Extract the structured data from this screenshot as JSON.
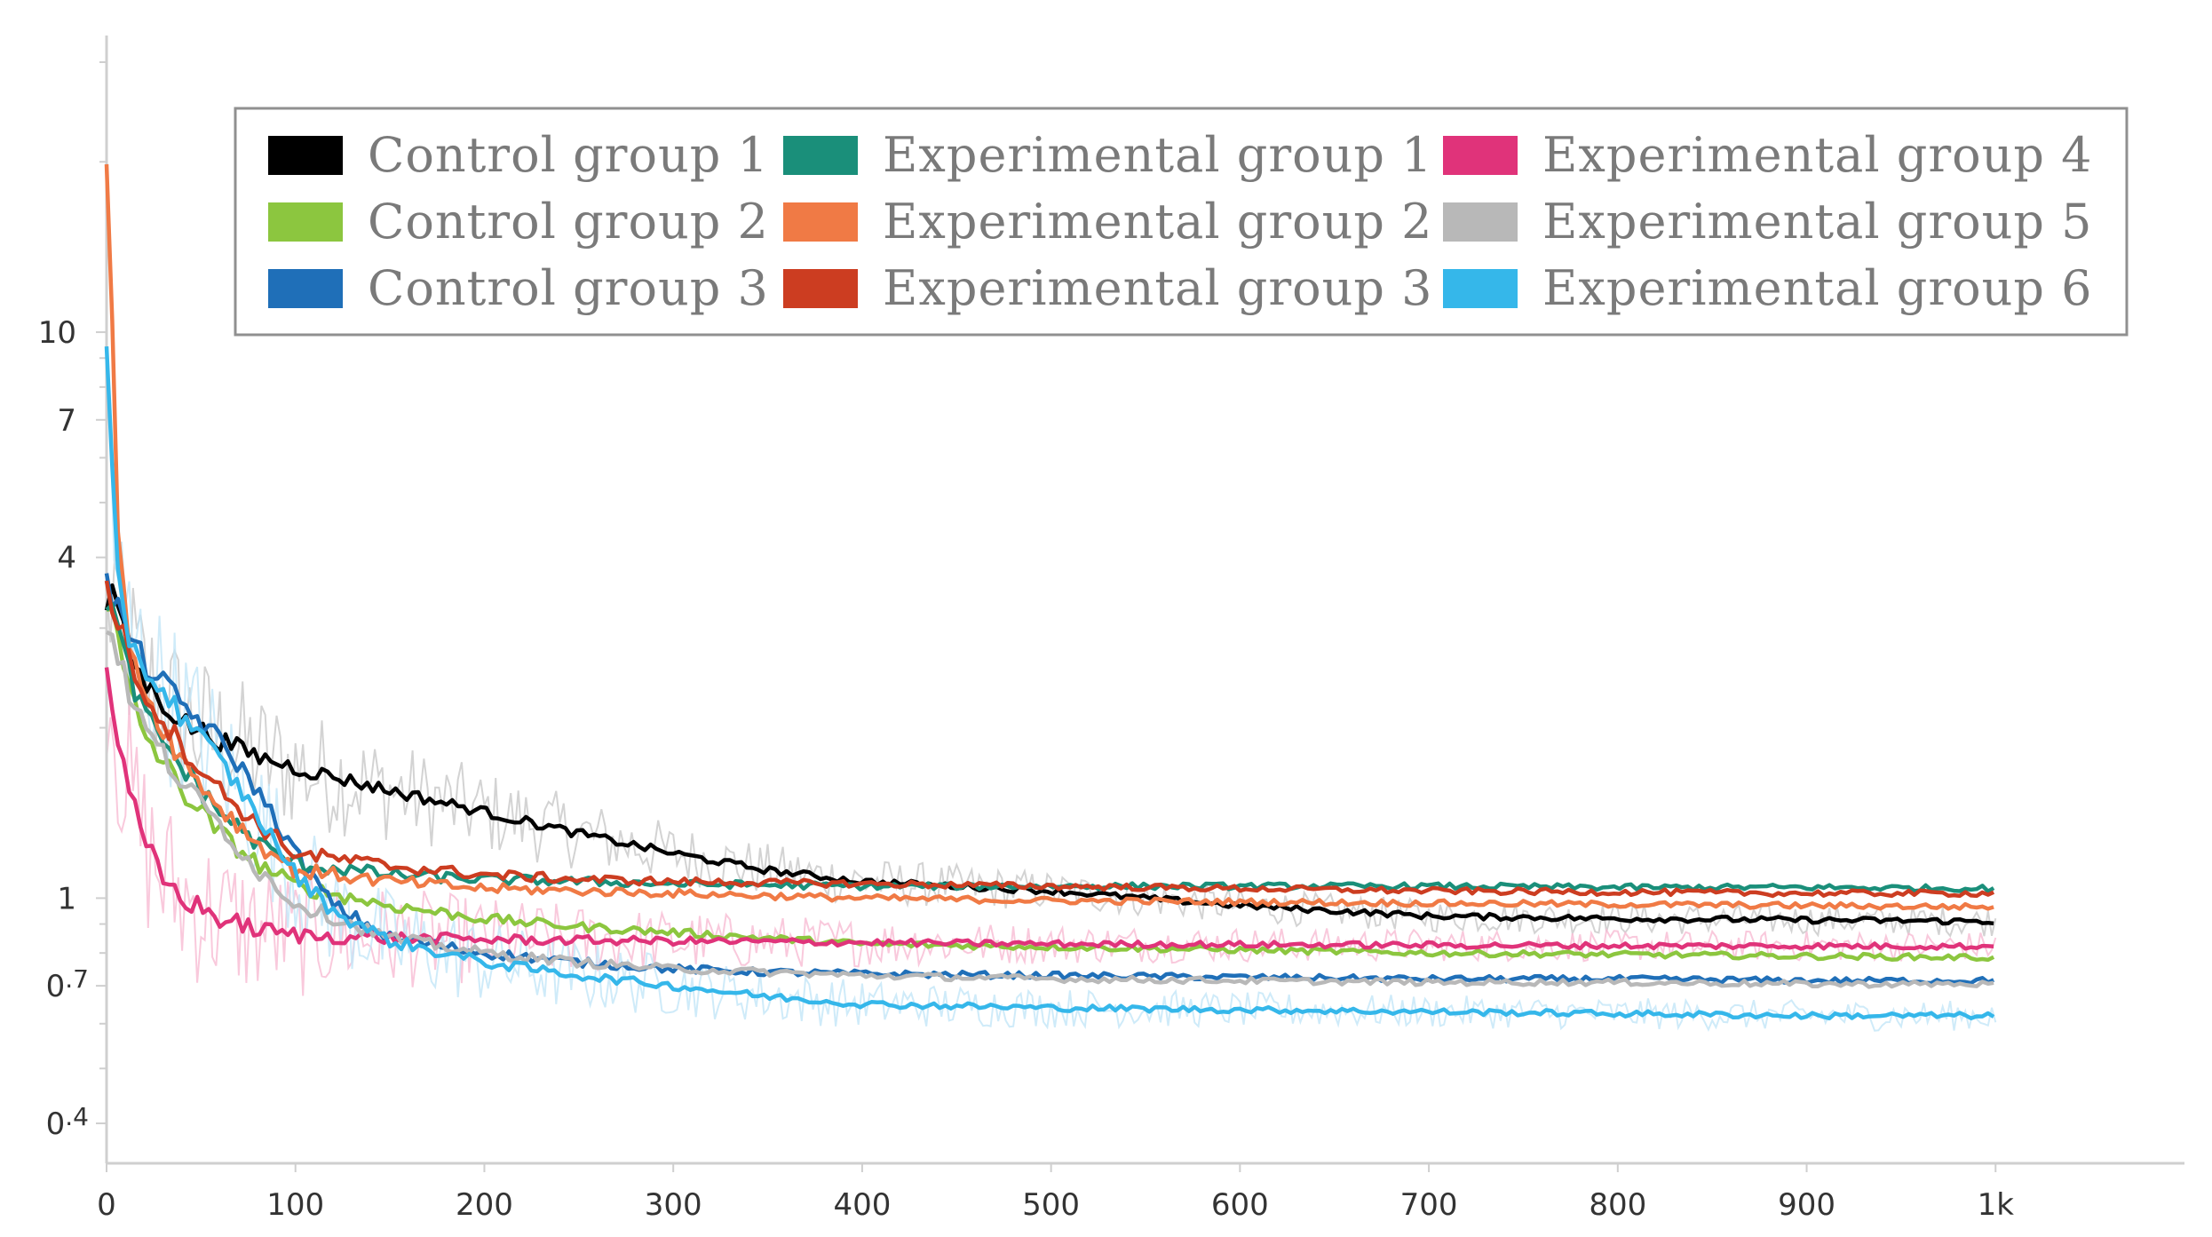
{
  "chart_data": {
    "type": "line",
    "title": "",
    "xlabel": "",
    "ylabel": "",
    "x_scale": "linear",
    "y_scale": "log",
    "xlim": [
      0,
      1100
    ],
    "ylim": [
      0.34,
      30
    ],
    "x_ticks": [
      {
        "value": 0,
        "label": "0"
      },
      {
        "value": 100,
        "label": "100"
      },
      {
        "value": 200,
        "label": "200"
      },
      {
        "value": 300,
        "label": "300"
      },
      {
        "value": 400,
        "label": "400"
      },
      {
        "value": 500,
        "label": "500"
      },
      {
        "value": 600,
        "label": "600"
      },
      {
        "value": 700,
        "label": "700"
      },
      {
        "value": 800,
        "label": "800"
      },
      {
        "value": 900,
        "label": "900"
      },
      {
        "value": 1000,
        "label": "1k"
      }
    ],
    "y_ticks": [
      {
        "value": 10,
        "label": "10",
        "sup": ""
      },
      {
        "value": 7,
        "label": "7",
        "sup": ""
      },
      {
        "value": 4,
        "label": "4",
        "sup": ""
      },
      {
        "value": 1,
        "label": "1",
        "sup": ""
      },
      {
        "value": 0.7,
        "label": "0",
        "sup": ".7"
      },
      {
        "value": 0.4,
        "label": "0",
        "sup": ".4"
      }
    ],
    "y_minor_ticks": [
      0.5,
      0.6,
      0.8,
      0.9,
      2,
      3,
      5,
      6,
      8,
      9,
      20,
      30
    ],
    "grid": false,
    "legend_position": "top-right",
    "legend_columns": 3,
    "series": [
      {
        "name": "Control group 1",
        "color": "#000000",
        "raw_color": "#c8c8c8",
        "x": [
          0,
          5,
          10,
          20,
          40,
          60,
          80,
          100,
          150,
          200,
          250,
          300,
          350,
          400,
          450,
          500,
          550,
          600,
          650,
          700,
          800,
          900,
          1000
        ],
        "y": [
          3.2,
          3.5,
          2.8,
          2.4,
          2.05,
          1.9,
          1.78,
          1.7,
          1.55,
          1.42,
          1.3,
          1.2,
          1.12,
          1.07,
          1.05,
          1.03,
          1.0,
          0.97,
          0.95,
          0.93,
          0.92,
          0.915,
          0.91
        ]
      },
      {
        "name": "Control group 2",
        "color": "#8cc63f",
        "x": [
          0,
          5,
          10,
          20,
          40,
          60,
          80,
          100,
          150,
          200,
          250,
          300,
          350,
          400,
          450,
          500,
          600,
          700,
          800,
          900,
          1000
        ],
        "y": [
          3.3,
          3.0,
          2.4,
          1.95,
          1.55,
          1.3,
          1.15,
          1.05,
          0.97,
          0.92,
          0.89,
          0.87,
          0.85,
          0.83,
          0.825,
          0.82,
          0.81,
          0.8,
          0.795,
          0.79,
          0.785
        ]
      },
      {
        "name": "Control group 3",
        "color": "#1f6fb8",
        "x": [
          0,
          5,
          10,
          20,
          40,
          60,
          80,
          100,
          120,
          150,
          200,
          250,
          300,
          350,
          400,
          500,
          600,
          700,
          800,
          900,
          1000
        ],
        "y": [
          3.6,
          3.3,
          3.0,
          2.6,
          2.2,
          1.9,
          1.55,
          1.2,
          0.97,
          0.85,
          0.8,
          0.77,
          0.75,
          0.74,
          0.735,
          0.73,
          0.725,
          0.72,
          0.72,
          0.715,
          0.715
        ]
      },
      {
        "name": "Experimental group 1",
        "color": "#1a8f7a",
        "x": [
          0,
          5,
          10,
          20,
          40,
          60,
          80,
          100,
          150,
          200,
          250,
          300,
          400,
          500,
          600,
          700,
          800,
          900,
          1000
        ],
        "y": [
          3.4,
          3.1,
          2.6,
          2.1,
          1.7,
          1.42,
          1.25,
          1.15,
          1.1,
          1.08,
          1.07,
          1.06,
          1.05,
          1.05,
          1.05,
          1.05,
          1.045,
          1.045,
          1.04
        ]
      },
      {
        "name": "Experimental group 2",
        "color": "#f07a45",
        "x": [
          0,
          2,
          5,
          10,
          20,
          40,
          60,
          80,
          100,
          150,
          200,
          250,
          300,
          400,
          500,
          600,
          700,
          800,
          900,
          1000
        ],
        "y": [
          20.0,
          14.0,
          5.0,
          3.1,
          2.3,
          1.75,
          1.45,
          1.25,
          1.12,
          1.07,
          1.04,
          1.03,
          1.02,
          1.0,
          0.99,
          0.985,
          0.98,
          0.975,
          0.97,
          0.965
        ]
      },
      {
        "name": "Experimental group 3",
        "color": "#cc3d21",
        "x": [
          0,
          5,
          10,
          20,
          40,
          60,
          80,
          100,
          150,
          200,
          250,
          300,
          400,
          500,
          600,
          700,
          800,
          900,
          1000
        ],
        "y": [
          3.5,
          3.2,
          2.8,
          2.3,
          1.85,
          1.55,
          1.35,
          1.2,
          1.14,
          1.1,
          1.08,
          1.07,
          1.06,
          1.05,
          1.04,
          1.03,
          1.025,
          1.02,
          1.02
        ]
      },
      {
        "name": "Experimental group 4",
        "color": "#e0337a",
        "raw_color": "#f7bcd3",
        "x": [
          0,
          5,
          10,
          20,
          30,
          40,
          60,
          80,
          100,
          150,
          200,
          300,
          400,
          500,
          600,
          700,
          800,
          900,
          1000
        ],
        "y": [
          2.6,
          2.0,
          1.6,
          1.25,
          1.08,
          1.0,
          0.92,
          0.88,
          0.86,
          0.85,
          0.845,
          0.84,
          0.835,
          0.83,
          0.828,
          0.826,
          0.824,
          0.823,
          0.822
        ]
      },
      {
        "name": "Experimental group 5",
        "color": "#b8b8b8",
        "x": [
          0,
          5,
          10,
          20,
          40,
          60,
          80,
          100,
          150,
          200,
          250,
          300,
          400,
          500,
          600,
          700,
          800,
          900,
          1000
        ],
        "y": [
          3.1,
          2.8,
          2.4,
          2.0,
          1.6,
          1.35,
          1.12,
          0.98,
          0.85,
          0.8,
          0.77,
          0.75,
          0.73,
          0.72,
          0.715,
          0.71,
          0.71,
          0.705,
          0.705
        ]
      },
      {
        "name": "Experimental group 6",
        "color": "#35b7ea",
        "raw_color": "#c3e6f7",
        "x": [
          0,
          2,
          5,
          10,
          20,
          40,
          60,
          80,
          100,
          120,
          150,
          200,
          250,
          300,
          350,
          400,
          500,
          600,
          700,
          800,
          900,
          1000
        ],
        "y": [
          9.0,
          6.5,
          3.8,
          3.0,
          2.55,
          2.1,
          1.75,
          1.4,
          1.1,
          0.95,
          0.84,
          0.77,
          0.73,
          0.7,
          0.67,
          0.65,
          0.64,
          0.635,
          0.63,
          0.625,
          0.62,
          0.62
        ]
      }
    ]
  }
}
